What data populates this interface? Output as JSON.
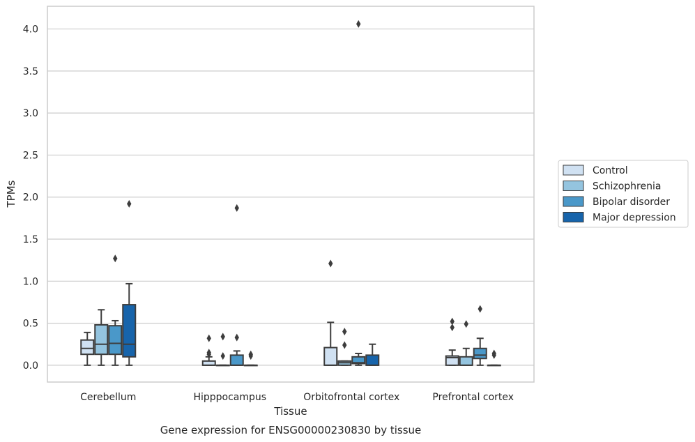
{
  "chart_data": {
    "type": "box",
    "title": "",
    "caption": "Gene expression for ENSG00000230830 by tissue",
    "xlabel": "Tissue",
    "ylabel": "TPMs",
    "ylim": [
      -0.2,
      4.27
    ],
    "yticks": [
      "0.0",
      "0.5",
      "1.0",
      "1.5",
      "2.0",
      "2.5",
      "3.0",
      "3.5",
      "4.0"
    ],
    "grid": true,
    "legend_position": "right-center",
    "categories": [
      "Cerebellum",
      "Hipppocampus",
      "Orbitofrontal cortex",
      "Prefrontal cortex"
    ],
    "series": [
      {
        "name": "Control",
        "color": "#d0e1f2",
        "boxes": [
          {
            "whislo": 0.0,
            "q1": 0.13,
            "med": 0.2,
            "q3": 0.3,
            "whishi": 0.39,
            "fliers": []
          },
          {
            "whislo": 0.0,
            "q1": 0.0,
            "med": 0.0,
            "q3": 0.05,
            "whishi": 0.1,
            "fliers": [
              0.32,
              0.15,
              0.13
            ]
          },
          {
            "whislo": 0.0,
            "q1": 0.0,
            "med": 0.0,
            "q3": 0.21,
            "whishi": 0.51,
            "fliers": [
              1.21
            ]
          },
          {
            "whislo": 0.0,
            "q1": 0.0,
            "med": 0.09,
            "q3": 0.11,
            "whishi": 0.18,
            "fliers": [
              0.52,
              0.45
            ]
          }
        ]
      },
      {
        "name": "Schizophrenia",
        "color": "#94c4df",
        "boxes": [
          {
            "whislo": 0.0,
            "q1": 0.13,
            "med": 0.25,
            "q3": 0.48,
            "whishi": 0.66,
            "fliers": []
          },
          {
            "whislo": 0.0,
            "q1": 0.0,
            "med": 0.0,
            "q3": 0.0,
            "whishi": 0.0,
            "fliers": [
              0.34,
              0.11
            ]
          },
          {
            "whislo": 0.0,
            "q1": 0.0,
            "med": 0.03,
            "q3": 0.05,
            "whishi": 0.05,
            "fliers": [
              0.4,
              0.24
            ]
          },
          {
            "whislo": 0.0,
            "q1": 0.0,
            "med": 0.0,
            "q3": 0.1,
            "whishi": 0.2,
            "fliers": [
              0.49
            ]
          }
        ]
      },
      {
        "name": "Bipolar disorder",
        "color": "#4a98c9",
        "boxes": [
          {
            "whislo": 0.0,
            "q1": 0.13,
            "med": 0.26,
            "q3": 0.47,
            "whishi": 0.53,
            "fliers": [
              1.27
            ]
          },
          {
            "whislo": 0.0,
            "q1": 0.0,
            "med": 0.0,
            "q3": 0.12,
            "whishi": 0.17,
            "fliers": [
              1.87,
              0.33
            ]
          },
          {
            "whislo": 0.0,
            "q1": 0.02,
            "med": 0.03,
            "q3": 0.1,
            "whishi": 0.14,
            "fliers": [
              4.06
            ]
          },
          {
            "whislo": 0.0,
            "q1": 0.08,
            "med": 0.12,
            "q3": 0.2,
            "whishi": 0.32,
            "fliers": [
              0.67
            ]
          }
        ]
      },
      {
        "name": "Major depression",
        "color": "#1764ab",
        "boxes": [
          {
            "whislo": 0.0,
            "q1": 0.1,
            "med": 0.25,
            "q3": 0.72,
            "whishi": 0.97,
            "fliers": [
              1.92
            ]
          },
          {
            "whislo": 0.0,
            "q1": 0.0,
            "med": 0.0,
            "q3": 0.0,
            "whishi": 0.0,
            "fliers": [
              0.13,
              0.11
            ]
          },
          {
            "whislo": 0.0,
            "q1": 0.0,
            "med": 0.0,
            "q3": 0.12,
            "whishi": 0.25,
            "fliers": []
          },
          {
            "whislo": 0.0,
            "q1": 0.0,
            "med": 0.0,
            "q3": 0.0,
            "whishi": 0.0,
            "fliers": [
              0.14,
              0.12
            ]
          }
        ]
      }
    ]
  }
}
